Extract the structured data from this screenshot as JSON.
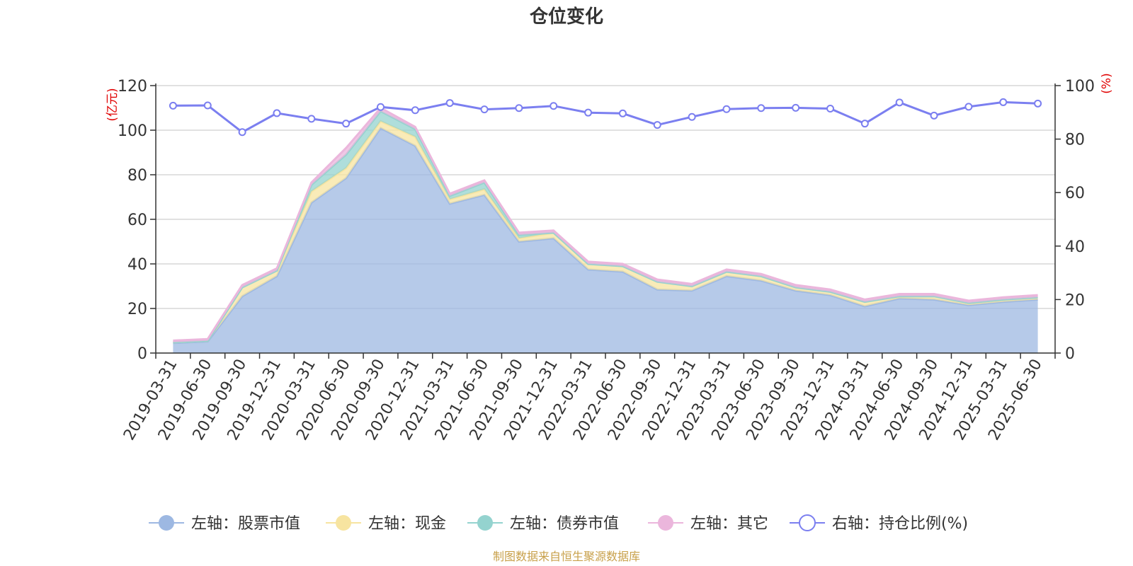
{
  "chart_data": {
    "type": "area",
    "title": "仓位变化",
    "left_axis_unit": "(亿元)",
    "right_axis_unit": "(%)",
    "ylim_left": [
      0,
      120
    ],
    "yticks_left": [
      "0",
      "20",
      "40",
      "60",
      "80",
      "100",
      "120"
    ],
    "ylim_right": [
      0,
      100
    ],
    "yticks_right": [
      "0",
      "20",
      "40",
      "60",
      "80",
      "100"
    ],
    "stacked": true,
    "grid": true,
    "legend_position": "bottom",
    "categories": [
      "2019-03-31",
      "2019-06-30",
      "2019-09-30",
      "2019-12-31",
      "2020-03-31",
      "2020-06-30",
      "2020-09-30",
      "2020-12-31",
      "2021-03-31",
      "2021-06-30",
      "2021-09-30",
      "2021-12-31",
      "2022-03-31",
      "2022-06-30",
      "2022-09-30",
      "2022-12-31",
      "2023-03-31",
      "2023-06-30",
      "2023-09-30",
      "2023-12-31",
      "2024-03-31",
      "2024-06-30",
      "2024-09-30",
      "2024-12-31",
      "2025-03-31",
      "2025-06-30"
    ],
    "series": [
      {
        "name": "左轴：股票市值",
        "axis": "left",
        "color": "#9db8e2",
        "values": [
          4.5,
          5.2,
          25.5,
          34.5,
          67.5,
          78.5,
          101.0,
          93.0,
          67.0,
          71.0,
          50.0,
          51.5,
          37.5,
          36.5,
          28.5,
          28.0,
          34.5,
          32.5,
          28.0,
          26.0,
          21.0,
          24.5,
          24.0,
          21.5,
          23.0,
          24.0
        ]
      },
      {
        "name": "左轴：现金",
        "axis": "left",
        "color": "#f7e4a0",
        "values": [
          0.3,
          0.3,
          4.0,
          2.5,
          5.0,
          4.5,
          3.0,
          4.0,
          2.0,
          2.5,
          1.5,
          2.5,
          2.5,
          2.5,
          3.5,
          2.0,
          2.0,
          2.0,
          1.5,
          1.5,
          2.0,
          1.0,
          1.5,
          1.0,
          1.0,
          1.0
        ]
      },
      {
        "name": "左轴：债券市值",
        "axis": "left",
        "color": "#94d3cf",
        "values": [
          0,
          0,
          0,
          0,
          3.0,
          6.0,
          4.5,
          3.5,
          1.5,
          3.0,
          1.5,
          0,
          0,
          0,
          0,
          0,
          0,
          0,
          0,
          0,
          0,
          0,
          0,
          0,
          0,
          0
        ]
      },
      {
        "name": "左轴：其它",
        "axis": "left",
        "color": "#ebb6dc",
        "values": [
          0.8,
          0.8,
          1.0,
          1.0,
          1.0,
          3.0,
          1.5,
          1.0,
          1.0,
          1.0,
          1.0,
          1.0,
          1.0,
          1.0,
          1.0,
          1.0,
          1.0,
          1.0,
          1.0,
          1.0,
          1.0,
          1.0,
          1.0,
          1.0,
          1.0,
          1.0
        ]
      },
      {
        "name": "右轴：持仓比例(%)",
        "axis": "right",
        "color": "#7b7ff0",
        "type": "line",
        "values": [
          92.5,
          92.6,
          82.6,
          89.7,
          87.6,
          85.8,
          92.0,
          90.8,
          93.5,
          91.1,
          91.6,
          92.4,
          89.9,
          89.6,
          85.3,
          88.3,
          91.2,
          91.6,
          91.7,
          91.4,
          85.8,
          93.7,
          88.8,
          92.1,
          93.8,
          93.3
        ]
      }
    ]
  },
  "footer": {
    "source_text": "制图数据来自恒生聚源数据库"
  }
}
